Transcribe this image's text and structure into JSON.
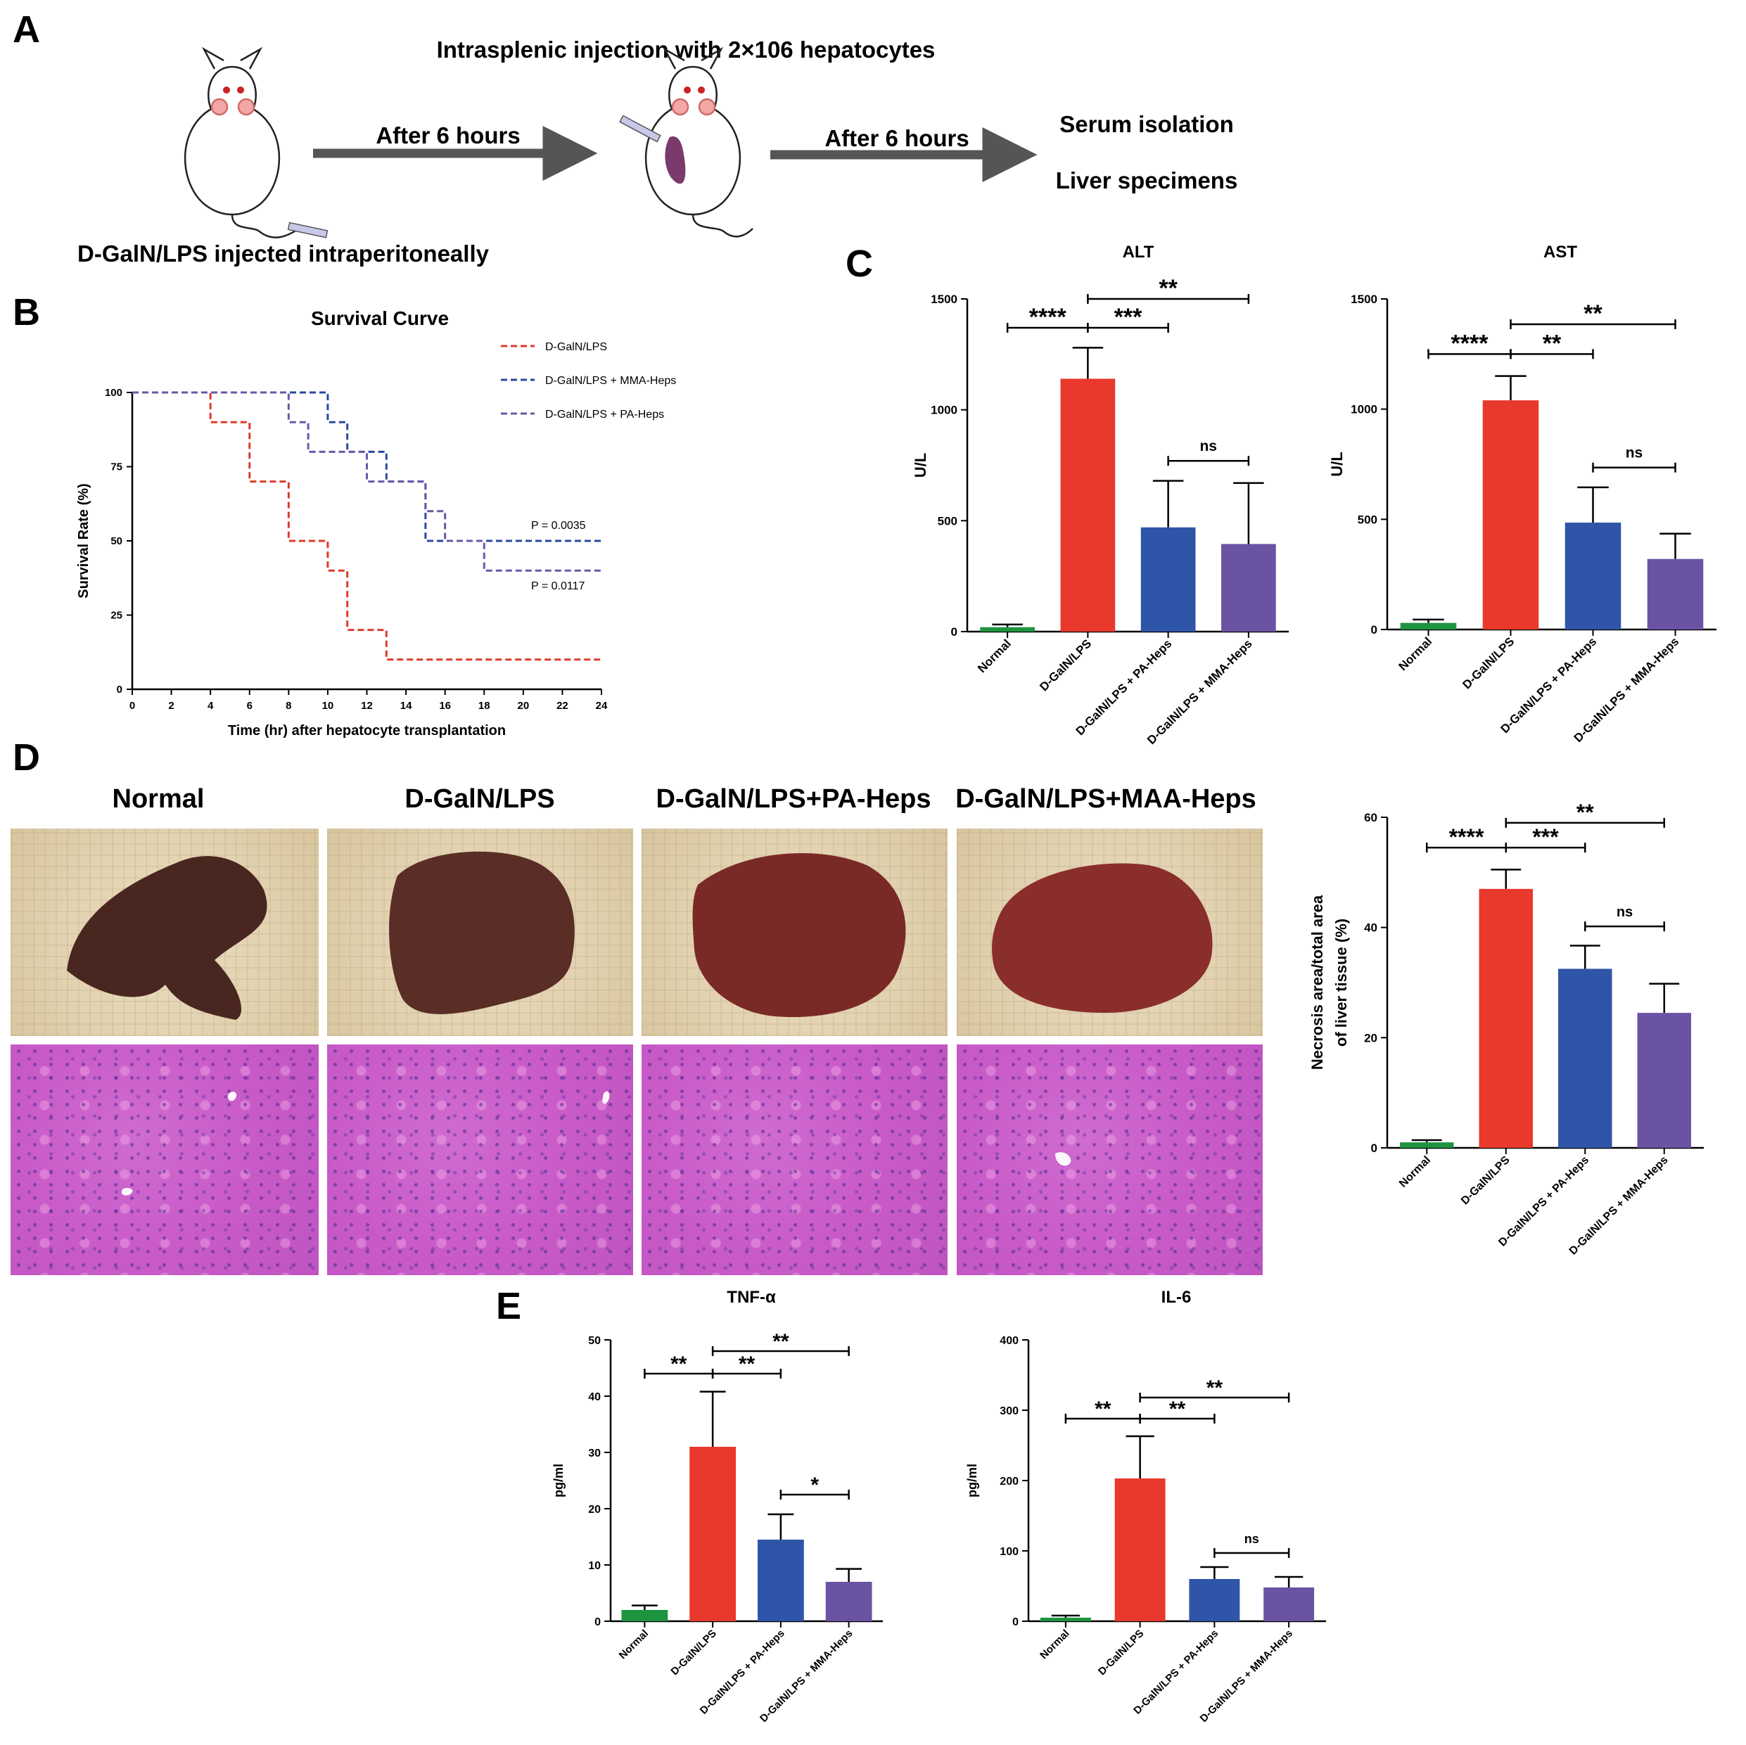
{
  "panel_letters": {
    "a": "A",
    "b": "B",
    "c": "C",
    "d": "D",
    "e": "E"
  },
  "schematic": {
    "top_text": "Intrasplenic injection with 2×106 hepatocytes",
    "arrow1_label": "After 6 hours",
    "arrow2_label": "After 6 hours",
    "result1": "Serum isolation",
    "result2": "Liver specimens",
    "bottom_text": "D-GalN/LPS injected intraperitoneally"
  },
  "photo_labels": [
    "Normal",
    "D-GalN/LPS",
    "D-GalN/LPS+PA-Heps",
    "D-GalN/LPS+MAA-Heps"
  ],
  "colors": {
    "normal": "#1e9440",
    "dgaln": "#e8392c",
    "pa": "#2f55a8",
    "mma": "#6b53a4",
    "surv_red": "#e0392b",
    "surv_blue": "#2a4aa0",
    "surv_purple": "#6a57a8"
  },
  "chart_data": [
    {
      "id": "survival",
      "type": "line",
      "title": "Survival Curve",
      "xlabel": "Time (hr) after hepatocyte transplantation",
      "ylabel": "Survival Rate (%)",
      "xlim": [
        0,
        24
      ],
      "ylim": [
        0,
        100
      ],
      "xticks": [
        "0",
        "2",
        "4",
        "6",
        "8",
        "10",
        "12",
        "14",
        "16",
        "18",
        "20",
        "22",
        "24"
      ],
      "yticks": [
        "0",
        "25",
        "50",
        "75",
        "100"
      ],
      "legend_position": "top-right",
      "series": [
        {
          "name": "D-GalN/LPS",
          "x": [
            0,
            4,
            6,
            8,
            10,
            11,
            13,
            24
          ],
          "y": [
            100,
            90,
            70,
            50,
            40,
            20,
            10,
            10
          ]
        },
        {
          "name": "D-GalN/LPS + MMA-Heps",
          "x": [
            0,
            10,
            11,
            12,
            13,
            15,
            24
          ],
          "y": [
            100,
            90,
            80,
            80,
            70,
            50,
            50
          ]
        },
        {
          "name": "D-GalN/LPS + PA-Heps",
          "x": [
            0,
            8,
            9,
            12,
            14,
            15,
            16,
            18,
            24
          ],
          "y": [
            100,
            90,
            80,
            70,
            70,
            60,
            50,
            40,
            40
          ]
        }
      ],
      "annotations": [
        "P = 0.0035",
        "P = 0.0117"
      ]
    },
    {
      "id": "alt",
      "type": "bar",
      "title": "ALT",
      "ylabel": "U/L",
      "ylim": [
        0,
        1500
      ],
      "yticks": [
        "0",
        "500",
        "1000",
        "1500"
      ],
      "categories": [
        "Normal",
        "D-GalN/LPS",
        "D-GalN/LPS + PA-Heps",
        "D-GalN/LPS + MMA-Heps"
      ],
      "values": [
        20,
        1140,
        470,
        395
      ],
      "errors": [
        12,
        140,
        210,
        275
      ],
      "significance": [
        {
          "from": 0,
          "to": 1,
          "y": 1370,
          "label": "****"
        },
        {
          "from": 1,
          "to": 2,
          "y": 1370,
          "label": "***"
        },
        {
          "from": 1,
          "to": 3,
          "y": 1500,
          "label": "**"
        },
        {
          "from": 2,
          "to": 3,
          "y": 770,
          "label": "ns"
        }
      ]
    },
    {
      "id": "ast",
      "type": "bar",
      "title": "AST",
      "ylabel": "U/L",
      "ylim": [
        0,
        1500
      ],
      "yticks": [
        "0",
        "500",
        "1000",
        "1500"
      ],
      "categories": [
        "Normal",
        "D-GalN/LPS",
        "D-GalN/LPS + PA-Heps",
        "D-GalN/LPS + MMA-Heps"
      ],
      "values": [
        30,
        1040,
        485,
        320
      ],
      "errors": [
        15,
        110,
        160,
        115
      ],
      "significance": [
        {
          "from": 0,
          "to": 1,
          "y": 1250,
          "label": "****"
        },
        {
          "from": 1,
          "to": 2,
          "y": 1250,
          "label": "**"
        },
        {
          "from": 1,
          "to": 3,
          "y": 1385,
          "label": "**"
        },
        {
          "from": 2,
          "to": 3,
          "y": 735,
          "label": "ns"
        }
      ]
    },
    {
      "id": "necrosis",
      "type": "bar",
      "title": "",
      "ylabel": "Necrosis area/total area of liver tissue (%)",
      "ylim": [
        0,
        60
      ],
      "yticks": [
        "0",
        "20",
        "40",
        "60"
      ],
      "categories": [
        "Normal",
        "D-GalN/LPS",
        "D-GalN/LPS + PA-Heps",
        "D-GalN/LPS + MMA-Heps"
      ],
      "values": [
        1,
        47,
        32.5,
        24.5
      ],
      "errors": [
        0.4,
        3.5,
        4.2,
        5.3
      ],
      "significance": [
        {
          "from": 0,
          "to": 1,
          "y": 54.5,
          "label": "****"
        },
        {
          "from": 1,
          "to": 2,
          "y": 54.5,
          "label": "***"
        },
        {
          "from": 1,
          "to": 3,
          "y": 59,
          "label": "**"
        },
        {
          "from": 2,
          "to": 3,
          "y": 40.2,
          "label": "ns"
        }
      ]
    },
    {
      "id": "tnf",
      "type": "bar",
      "title": "TNF-α",
      "ylabel": "pg/ml",
      "ylim": [
        0,
        50
      ],
      "yticks": [
        "0",
        "10",
        "20",
        "30",
        "40",
        "50"
      ],
      "categories": [
        "Normal",
        "D-GalN/LPS",
        "D-GalN/LPS + PA-Heps",
        "D-GalN/LPS + MMA-Heps"
      ],
      "values": [
        2,
        31,
        14.5,
        7
      ],
      "errors": [
        0.8,
        9.8,
        4.5,
        2.3
      ],
      "significance": [
        {
          "from": 0,
          "to": 1,
          "y": 44,
          "label": "**"
        },
        {
          "from": 1,
          "to": 2,
          "y": 44,
          "label": "**"
        },
        {
          "from": 1,
          "to": 3,
          "y": 48,
          "label": "**"
        },
        {
          "from": 2,
          "to": 3,
          "y": 22.5,
          "label": "*"
        }
      ]
    },
    {
      "id": "il6",
      "type": "bar",
      "title": "IL-6",
      "ylabel": "pg/ml",
      "ylim": [
        0,
        400
      ],
      "yticks": [
        "0",
        "100",
        "200",
        "300",
        "400"
      ],
      "categories": [
        "Normal",
        "D-GalN/LPS",
        "D-GalN/LPS + PA-Heps",
        "D-GalN/LPS + MMA-Heps"
      ],
      "values": [
        5,
        203,
        60,
        48
      ],
      "errors": [
        3,
        60,
        17,
        15
      ],
      "significance": [
        {
          "from": 0,
          "to": 1,
          "y": 288,
          "label": "**"
        },
        {
          "from": 1,
          "to": 2,
          "y": 288,
          "label": "**"
        },
        {
          "from": 1,
          "to": 3,
          "y": 318,
          "label": "**"
        },
        {
          "from": 2,
          "to": 3,
          "y": 97,
          "label": "ns"
        }
      ]
    }
  ]
}
